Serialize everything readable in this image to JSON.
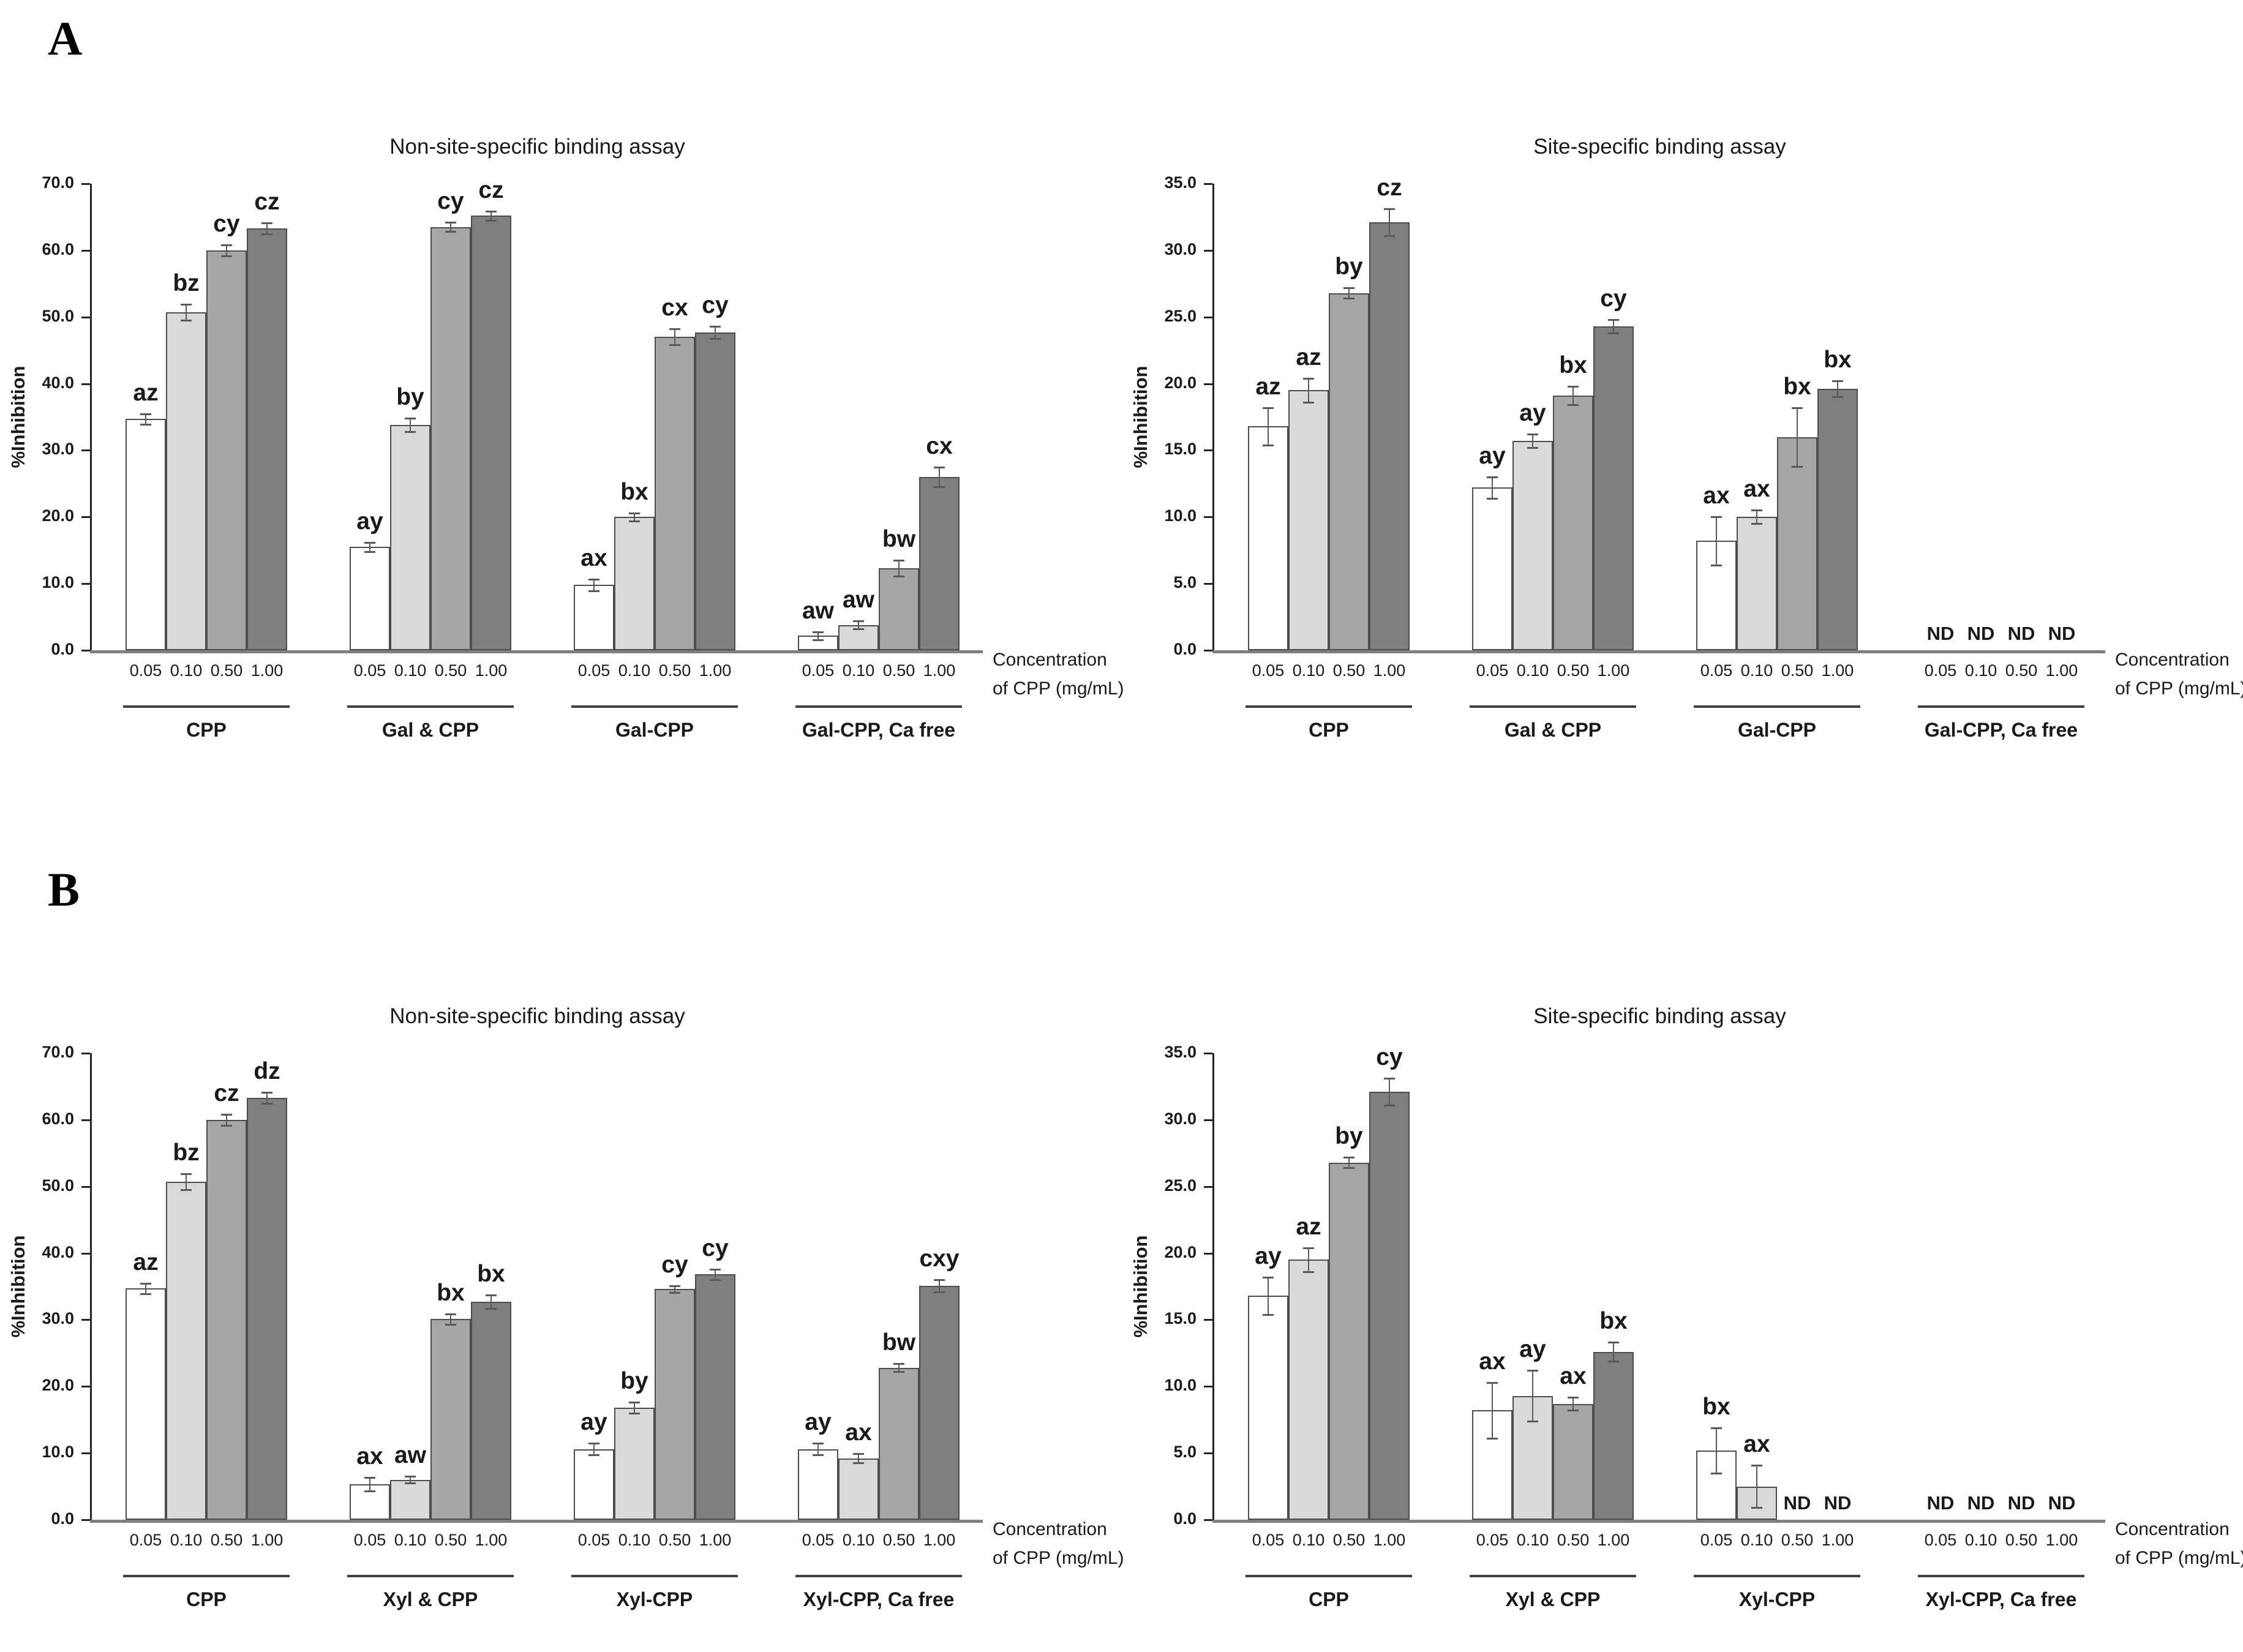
{
  "figure": {
    "panel_labels": [
      "A",
      "B"
    ],
    "bar_colors": [
      "#ffffff",
      "#d9d9d9",
      "#a6a6a6",
      "#7f7f7f"
    ],
    "axis_color": "#262626",
    "baseline_color": "#7f7f7f",
    "nd_text": "ND"
  },
  "chart_data": [
    {
      "type": "bar",
      "panel": "A",
      "position": "left",
      "title": "Non-site-specific binding assay",
      "ylabel": "%Inhibition",
      "ylim": [
        0,
        70
      ],
      "ystep": 10,
      "grid": false,
      "legend": "none",
      "xlabel_lines": [
        "Concentration",
        "of CPP (mg/mL)"
      ],
      "categories": [
        "0.05",
        "0.10",
        "0.50",
        "1.00"
      ],
      "groups": [
        {
          "name": "CPP",
          "values": [
            34.7,
            50.7,
            60.0,
            63.3
          ],
          "errors": [
            0.8,
            1.2,
            0.8,
            0.8
          ],
          "letters": [
            "az",
            "bz",
            "cy",
            "cz"
          ],
          "nd": [
            false,
            false,
            false,
            false
          ]
        },
        {
          "name": "Gal & CPP",
          "values": [
            15.5,
            33.8,
            63.5,
            65.2
          ],
          "errors": [
            0.7,
            1.0,
            0.7,
            0.7
          ],
          "letters": [
            "ay",
            "by",
            "cy",
            "cz"
          ],
          "nd": [
            false,
            false,
            false,
            false
          ]
        },
        {
          "name": "Gal-CPP",
          "values": [
            9.8,
            20.0,
            47.0,
            47.7
          ],
          "errors": [
            0.9,
            0.6,
            1.2,
            0.9
          ],
          "letters": [
            "ax",
            "bx",
            "cx",
            "cy"
          ],
          "nd": [
            false,
            false,
            false,
            false
          ]
        },
        {
          "name": "Gal-CPP, Ca free",
          "values": [
            2.2,
            3.8,
            12.3,
            26.0
          ],
          "errors": [
            0.6,
            0.6,
            1.2,
            1.5
          ],
          "letters": [
            "aw",
            "aw",
            "bw",
            "cx"
          ],
          "nd": [
            false,
            false,
            false,
            false
          ]
        }
      ]
    },
    {
      "type": "bar",
      "panel": "A",
      "position": "right",
      "title": "Site-specific binding assay",
      "ylabel": "%Inhibition",
      "ylim": [
        0,
        35
      ],
      "ystep": 5,
      "grid": false,
      "legend": "none",
      "xlabel_lines": [
        "Concentration",
        "of CPP (mg/mL)"
      ],
      "categories": [
        "0.05",
        "0.10",
        "0.50",
        "1.00"
      ],
      "groups": [
        {
          "name": "CPP",
          "values": [
            16.8,
            19.5,
            26.8,
            32.1
          ],
          "errors": [
            1.4,
            0.9,
            0.4,
            1.0
          ],
          "letters": [
            "az",
            "az",
            "by",
            "cz"
          ],
          "nd": [
            false,
            false,
            false,
            false
          ]
        },
        {
          "name": "Gal & CPP",
          "values": [
            12.2,
            15.7,
            19.1,
            24.3
          ],
          "errors": [
            0.8,
            0.5,
            0.7,
            0.5
          ],
          "letters": [
            "ay",
            "ay",
            "bx",
            "cy"
          ],
          "nd": [
            false,
            false,
            false,
            false
          ]
        },
        {
          "name": "Gal-CPP",
          "values": [
            8.2,
            10.0,
            16.0,
            19.6
          ],
          "errors": [
            1.8,
            0.5,
            2.2,
            0.6
          ],
          "letters": [
            "ax",
            "ax",
            "bx",
            "bx"
          ],
          "nd": [
            false,
            false,
            false,
            false
          ]
        },
        {
          "name": "Gal-CPP, Ca free",
          "values": [
            null,
            null,
            null,
            null
          ],
          "errors": [
            0,
            0,
            0,
            0
          ],
          "letters": [
            "",
            "",
            "",
            ""
          ],
          "nd": [
            true,
            true,
            true,
            true
          ]
        }
      ]
    },
    {
      "type": "bar",
      "panel": "B",
      "position": "left",
      "title": "Non-site-specific binding assay",
      "ylabel": "%Inhibition",
      "ylim": [
        0,
        70
      ],
      "ystep": 10,
      "grid": false,
      "legend": "none",
      "xlabel_lines": [
        "Concentration",
        "of CPP (mg/mL)"
      ],
      "categories": [
        "0.05",
        "0.10",
        "0.50",
        "1.00"
      ],
      "groups": [
        {
          "name": "CPP",
          "values": [
            34.7,
            50.7,
            60.0,
            63.3
          ],
          "errors": [
            0.8,
            1.2,
            0.8,
            0.8
          ],
          "letters": [
            "az",
            "bz",
            "cz",
            "dz"
          ],
          "nd": [
            false,
            false,
            false,
            false
          ]
        },
        {
          "name": "Xyl & CPP",
          "values": [
            5.3,
            6.0,
            30.1,
            32.7
          ],
          "errors": [
            1.0,
            0.5,
            0.8,
            1.0
          ],
          "letters": [
            "ax",
            "aw",
            "bx",
            "bx"
          ],
          "nd": [
            false,
            false,
            false,
            false
          ]
        },
        {
          "name": "Xyl-CPP",
          "values": [
            10.6,
            16.8,
            34.6,
            36.8
          ],
          "errors": [
            0.9,
            0.8,
            0.5,
            0.8
          ],
          "letters": [
            "ay",
            "by",
            "cy",
            "cy"
          ],
          "nd": [
            false,
            false,
            false,
            false
          ]
        },
        {
          "name": "Xyl-CPP, Ca free",
          "values": [
            10.6,
            9.2,
            22.8,
            35.1
          ],
          "errors": [
            0.9,
            0.7,
            0.6,
            0.9
          ],
          "letters": [
            "ay",
            "ax",
            "bw",
            "cxy"
          ],
          "nd": [
            false,
            false,
            false,
            false
          ]
        }
      ]
    },
    {
      "type": "bar",
      "panel": "B",
      "position": "right",
      "title": "Site-specific binding assay",
      "ylabel": "%Inhibition",
      "ylim": [
        0,
        35
      ],
      "ystep": 5,
      "grid": false,
      "legend": "none",
      "xlabel_lines": [
        "Concentration",
        "of CPP (mg/mL)"
      ],
      "categories": [
        "0.05",
        "0.10",
        "0.50",
        "1.00"
      ],
      "groups": [
        {
          "name": "CPP",
          "values": [
            16.8,
            19.5,
            26.8,
            32.1
          ],
          "errors": [
            1.4,
            0.9,
            0.4,
            1.0
          ],
          "letters": [
            "ay",
            "az",
            "by",
            "cy"
          ],
          "nd": [
            false,
            false,
            false,
            false
          ]
        },
        {
          "name": "Xyl & CPP",
          "values": [
            8.2,
            9.3,
            8.7,
            12.6
          ],
          "errors": [
            2.1,
            1.9,
            0.5,
            0.7
          ],
          "letters": [
            "ax",
            "ay",
            "ax",
            "bx"
          ],
          "nd": [
            false,
            false,
            false,
            false
          ]
        },
        {
          "name": "Xyl-CPP",
          "values": [
            5.2,
            2.5,
            null,
            null
          ],
          "errors": [
            1.7,
            1.6,
            0,
            0
          ],
          "letters": [
            "bx",
            "ax",
            "",
            ""
          ],
          "nd": [
            false,
            false,
            true,
            true
          ]
        },
        {
          "name": "Xyl-CPP, Ca free",
          "values": [
            null,
            null,
            null,
            null
          ],
          "errors": [
            0,
            0,
            0,
            0
          ],
          "letters": [
            "",
            "",
            "",
            ""
          ],
          "nd": [
            true,
            true,
            true,
            true
          ]
        }
      ]
    }
  ]
}
